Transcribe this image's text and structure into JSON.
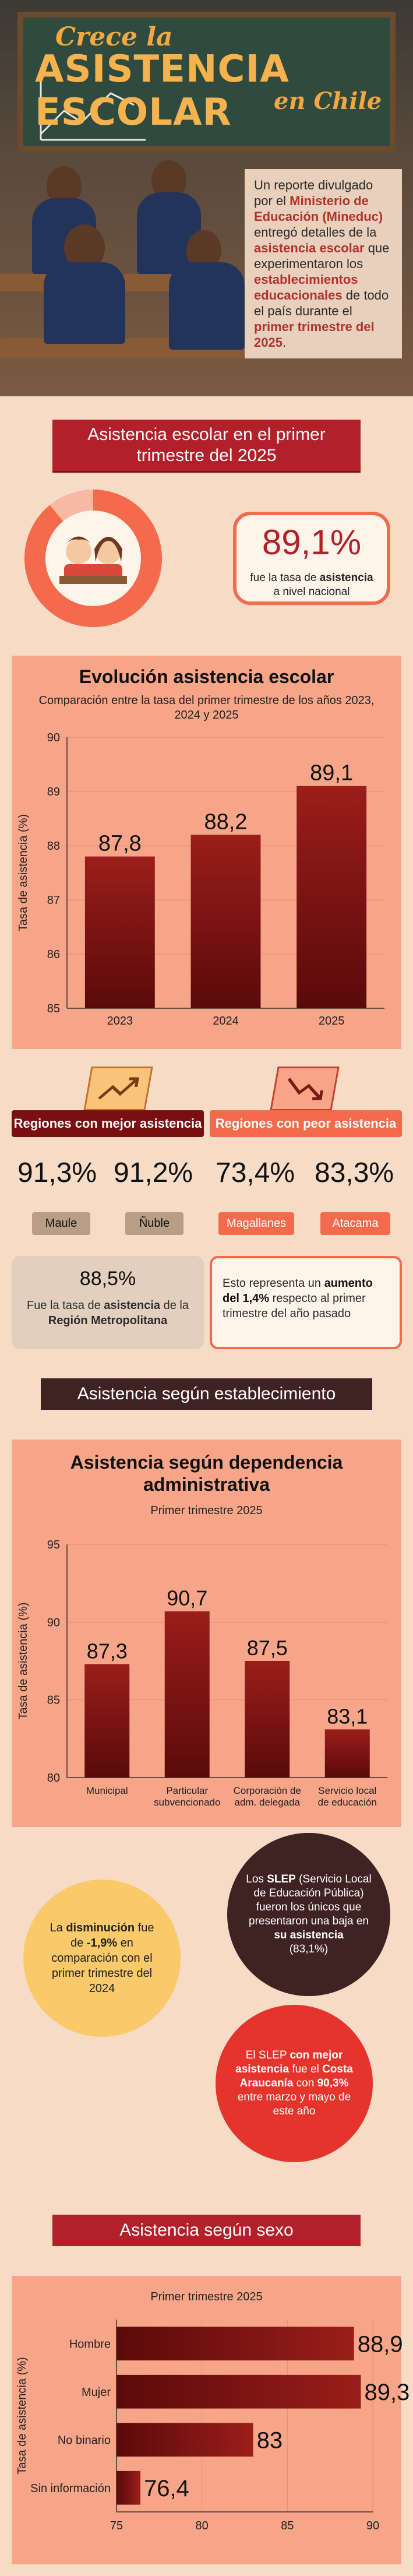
{
  "hero": {
    "title_line1": "Crece la",
    "title_line2": "ASISTENCIA ESCOLAR",
    "title_line3": "en Chile",
    "intro_parts": [
      {
        "t": "Un reporte divulgado por el ",
        "hl": false
      },
      {
        "t": "Ministerio de Educación (Mineduc)",
        "hl": true
      },
      {
        "t": " entregó detalles de la ",
        "hl": false
      },
      {
        "t": "asistencia escolar",
        "hl": true
      },
      {
        "t": " que experimentaron los ",
        "hl": false
      },
      {
        "t": "establecimientos educacionales",
        "hl": true
      },
      {
        "t": " de todo el país durante el ",
        "hl": false
      },
      {
        "t": "primer trimestre del 2025",
        "hl": true
      },
      {
        "t": ".",
        "hl": false
      }
    ]
  },
  "section1": {
    "banner": "Asistencia escolar en el primer trimestre del 2025",
    "national_value": "89,1%",
    "national_caption_1": "fue la tasa de",
    "national_caption_bold": "asistencia",
    "national_caption_2": "a nivel nacional",
    "donut_fraction": 0.891
  },
  "colors": {
    "dark_red": "#7a0f12",
    "red": "#b2202a",
    "salmon": "#f6a589",
    "orange": "#f36b4c",
    "beige": "#fff4ea",
    "cream_bg": "#f6dcc7",
    "olive_tag": "#b79e84"
  },
  "chart_data": [
    {
      "type": "bar",
      "title": "Evolución asistencia escolar",
      "subtitle": "Comparación entre la tasa del primer trimestre de los años 2023, 2024 y 2025",
      "ylabel": "Tasa de asistencia (%)",
      "categories": [
        "2023",
        "2024",
        "2025"
      ],
      "values": [
        87.8,
        88.2,
        89.1
      ],
      "value_labels": [
        "87,8",
        "88,2",
        "89,1"
      ],
      "ylim": [
        85,
        90
      ],
      "yticks": [
        "85",
        "86",
        "87",
        "88",
        "89",
        "90"
      ]
    },
    {
      "type": "bar",
      "title": "Asistencia según dependencia administrativa",
      "subtitle": "Primer trimestre 2025",
      "ylabel": "Tasa de asistencia (%)",
      "categories": [
        [
          "Municipal"
        ],
        [
          "Particular",
          "subvencionado"
        ],
        [
          "Corporación de",
          "adm. delegada"
        ],
        [
          "Servicio local",
          "de educación"
        ]
      ],
      "values": [
        87.3,
        90.7,
        87.5,
        83.1
      ],
      "value_labels": [
        "87,3",
        "90,7",
        "87,5",
        "83,1"
      ],
      "ylim": [
        80,
        95
      ],
      "yticks": [
        "80",
        "85",
        "90",
        "95"
      ]
    },
    {
      "type": "bar",
      "orientation": "horizontal",
      "subtitle": "Primer trimestre 2025",
      "ylabel": "Tasa de asistencia (%)",
      "categories": [
        "Hombre",
        "Mujer",
        "No binario",
        "Sin información"
      ],
      "values": [
        88.9,
        89.3,
        83,
        76.4
      ],
      "value_labels": [
        "88,9",
        "89,3",
        "83",
        "76,4"
      ],
      "xlim": [
        75,
        90
      ],
      "xticks": [
        "75",
        "80",
        "85",
        "90"
      ]
    }
  ],
  "regions": {
    "best_label": "Regiones con mejor asistencia",
    "worst_label": "Regiones con peor asistencia",
    "best": [
      {
        "pct": "91,3%",
        "name": "Maule"
      },
      {
        "pct": "91,2%",
        "name": "Ñuble"
      }
    ],
    "worst": [
      {
        "pct": "73,4%",
        "name": "Magallanes"
      },
      {
        "pct": "83,3%",
        "name": "Atacama"
      }
    ],
    "rm_value": "88,5%",
    "rm_text_1": "Fue la tasa de",
    "rm_text_bold1": "asistencia",
    "rm_text_2": "de la",
    "rm_text_bold2": "Región Metropolitana",
    "increase_text_1": "Esto representa un",
    "increase_bold": "aumento del 1,4%",
    "increase_text_2": "respecto al primer trimestre del año pasado"
  },
  "section2": {
    "banner": "Asistencia según establecimiento",
    "slep_intro_1": "Los",
    "slep_bold": "SLEP",
    "slep_intro_2": "(Servicio Local de Educación Pública) fueron los únicos que presentaron una baja en",
    "slep_bold2": "su asistencia",
    "slep_value": "(83,1%)",
    "drop_1": "La",
    "drop_bold": "disminución",
    "drop_2": "fue de",
    "drop_value": "-1,9%",
    "drop_3": "en comparación con el primer trimestre del 2024",
    "best_slep_1": "El SLEP",
    "best_slep_bold1": "con mejor asistencia",
    "best_slep_2": "fue el",
    "best_slep_bold2": "Costa Araucanía",
    "best_slep_3": "con",
    "best_slep_bold3": "90,3%",
    "best_slep_4": "entre marzo y mayo de este año"
  },
  "section3": {
    "banner": "Asistencia según sexo"
  }
}
